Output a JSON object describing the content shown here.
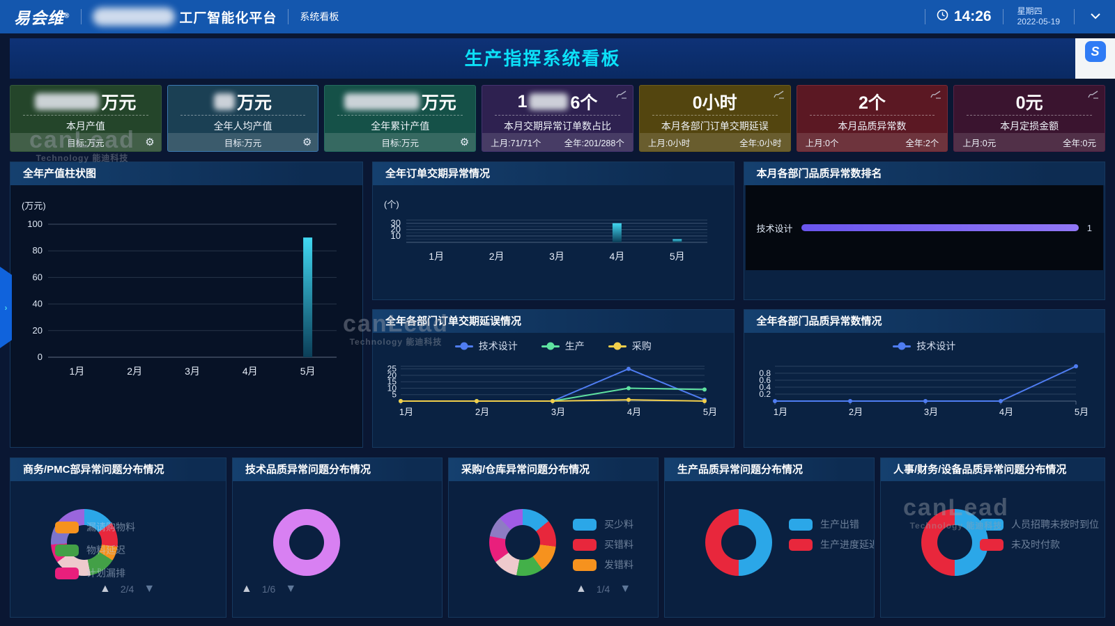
{
  "navbar": {
    "logo_text": "易会维",
    "logo_reg": "®",
    "platform_title": "工厂智能化平台",
    "menu_item": "系统看板",
    "time": "14:26",
    "weekday": "星期四",
    "date": "2022-05-19"
  },
  "title_bar": {
    "title": "生产指挥系统看板",
    "widget_letter": "S"
  },
  "drawer": {
    "chevron": "›"
  },
  "icons": {
    "gear": "⚙",
    "pager_up": "▲",
    "pager_down": "▼"
  },
  "watermark": {
    "line1": "canLead",
    "line2": "Technology 能迪科技"
  },
  "kpi_cards": [
    {
      "name": "monthly-output",
      "prefix": "",
      "blur_width": 92,
      "suffix": "万元",
      "label": "本月产值",
      "footer": [
        "目标:万元"
      ],
      "gear": true,
      "trend_icon": false,
      "bg": "#24452a",
      "border": "#35593a",
      "footer_bg": "rgba(255,255,255,0.14)"
    },
    {
      "name": "annual-per-capita-output",
      "prefix": "",
      "blur_width": 30,
      "suffix": "万元",
      "label": "全年人均产值",
      "footer": [
        "目标:万元"
      ],
      "gear": true,
      "trend_icon": false,
      "bg": "#1b4054",
      "border": "#3c7bb4",
      "footer_bg": "rgba(255,255,255,0.14)"
    },
    {
      "name": "annual-cumulative-output",
      "prefix": "",
      "blur_width": 108,
      "suffix": "万元",
      "label": "全年累计产值",
      "footer": [
        "目标:万元"
      ],
      "gear": true,
      "trend_icon": false,
      "bg": "#155148",
      "border": "#236a5e",
      "footer_bg": "rgba(255,255,255,0.14)"
    },
    {
      "name": "monthly-delivery-abnormal-ratio",
      "prefix": "1",
      "blur_width": 56,
      "suffix": "6个",
      "label": "本月交期异常订单数占比",
      "footer": [
        "上月:71/71个",
        "全年:201/288个"
      ],
      "gear": false,
      "trend_icon": true,
      "bg": "#2e2150",
      "border": "#453370",
      "footer_bg": "rgba(255,255,255,0.12)"
    },
    {
      "name": "monthly-dept-order-delay",
      "prefix": "0小时",
      "blur_width": 0,
      "suffix": "",
      "label": "本月各部门订单交期延误",
      "footer": [
        "上月:0小时",
        "全年:0小时"
      ],
      "gear": false,
      "trend_icon": true,
      "bg": "#53450f",
      "border": "#6d5c1c",
      "footer_bg": "rgba(255,255,255,0.13)"
    },
    {
      "name": "monthly-quality-abnormal-count",
      "prefix": "2个",
      "blur_width": 0,
      "suffix": "",
      "label": "本月品质异常数",
      "footer": [
        "上月:0个",
        "全年:2个"
      ],
      "gear": false,
      "trend_icon": true,
      "bg": "#5b1823",
      "border": "#7a2a36",
      "footer_bg": "rgba(255,255,255,0.12)"
    },
    {
      "name": "monthly-loss-amount",
      "prefix": "0元",
      "blur_width": 0,
      "suffix": "",
      "label": "本月定损金额",
      "footer": [
        "上月:0元",
        "全年:0元"
      ],
      "gear": false,
      "trend_icon": true,
      "bg": "#3a142f",
      "border": "#562345",
      "footer_bg": "rgba(255,255,255,0.12)"
    }
  ],
  "chart_data": [
    {
      "id": "annual-output-bar",
      "type": "bar",
      "title": "全年产值柱状图",
      "unit_label": "(万元)",
      "categories": [
        "1月",
        "2月",
        "3月",
        "4月",
        "5月"
      ],
      "values": [
        0,
        0,
        0,
        0,
        90
      ],
      "ylim": [
        0,
        100
      ],
      "yticks": [
        0,
        20,
        40,
        60,
        80,
        100
      ],
      "bar_color_top": "#41d8f2",
      "bar_color_bottom": "#0b3e58"
    },
    {
      "id": "order-delay-bar",
      "type": "bar",
      "title": "全年订单交期异常情况",
      "unit_label": "(个)",
      "categories": [
        "1月",
        "2月",
        "3月",
        "4月",
        "5月"
      ],
      "values": [
        0,
        0,
        0,
        30,
        5
      ],
      "ylim": [
        0,
        35
      ],
      "yticks": [
        10,
        20,
        30
      ],
      "bar_color_top": "#41d8f2",
      "bar_color_bottom": "#0b3e58"
    },
    {
      "id": "dept-quality-rank",
      "type": "hbar",
      "title": "本月各部门品质异常数排名",
      "categories": [
        "技术设计"
      ],
      "values": [
        1
      ],
      "max": 1,
      "bar_color_start": "#6a55ee",
      "bar_color_end": "#9177f5"
    },
    {
      "id": "dept-order-delay-line",
      "type": "line",
      "title": "全年各部门订单交期延误情况",
      "categories": [
        "1月",
        "2月",
        "3月",
        "4月",
        "5月"
      ],
      "ylim": [
        0,
        27
      ],
      "yticks": [
        5,
        10,
        15,
        20,
        25
      ],
      "series": [
        {
          "name": "技术设计",
          "color": "#4f7df2",
          "values": [
            0,
            0,
            0,
            25,
            1
          ]
        },
        {
          "name": "生产",
          "color": "#5fe3a1",
          "values": [
            0,
            0,
            0,
            10,
            9
          ]
        },
        {
          "name": "采购",
          "color": "#f2cf4b",
          "values": [
            0,
            0,
            0,
            1,
            0
          ]
        }
      ]
    },
    {
      "id": "dept-quality-line",
      "type": "line",
      "title": "全年各部门品质异常数情况",
      "categories": [
        "1月",
        "2月",
        "3月",
        "4月",
        "5月"
      ],
      "ylim": [
        0,
        1
      ],
      "yticks": [
        0.2,
        0.4,
        0.6,
        0.8
      ],
      "series": [
        {
          "name": "技术设计",
          "color": "#4f7df2",
          "values": [
            0,
            0,
            0,
            0,
            1
          ]
        }
      ]
    }
  ],
  "donut_panels": [
    {
      "id": "pmc",
      "title": "商务/PMC部异常问题分布情况",
      "pagination": "2/4",
      "pager_pos": "center",
      "legend_mode": "overlay",
      "slices": [
        {
          "color": "#2ba7e8",
          "value": 15
        },
        {
          "color": "#e8273c",
          "value": 12
        },
        {
          "color": "#f6921e",
          "value": 7
        },
        {
          "color": "#43a047",
          "value": 13
        },
        {
          "color": "#eecacd",
          "value": 18
        },
        {
          "color": "#e91f7c",
          "value": 9
        },
        {
          "color": "#7d74cc",
          "value": 12
        },
        {
          "color": "#9a66dd",
          "value": 14
        }
      ],
      "legend": [
        {
          "color": "#f6921e",
          "label": "漏请购物料"
        },
        {
          "color": "#43a047",
          "label": "物料延迟"
        },
        {
          "color": "#e91f7c",
          "label": "计划漏排"
        }
      ]
    },
    {
      "id": "tech-quality",
      "title": "技术品质异常问题分布情况",
      "pagination": "1/6",
      "pager_pos": "left",
      "legend_mode": "right",
      "slices": [
        {
          "color": "#d880f2",
          "value": 100
        }
      ],
      "legend": []
    },
    {
      "id": "purchase-warehouse",
      "title": "采购/仓库异常问题分布情况",
      "pagination": "1/4",
      "pager_pos": "legend",
      "legend_mode": "right",
      "slices": [
        {
          "color": "#2ba7e8",
          "value": 14
        },
        {
          "color": "#e8273c",
          "value": 13
        },
        {
          "color": "#f6921e",
          "value": 13
        },
        {
          "color": "#43b049",
          "value": 13
        },
        {
          "color": "#eecacd",
          "value": 12
        },
        {
          "color": "#e91f7c",
          "value": 13
        },
        {
          "color": "#8e7cc3",
          "value": 10
        },
        {
          "color": "#a05ce6",
          "value": 12
        }
      ],
      "legend": [
        {
          "color": "#2ba7e8",
          "label": "买少料"
        },
        {
          "color": "#e8273c",
          "label": "买错料"
        },
        {
          "color": "#f6921e",
          "label": "发错料"
        }
      ]
    },
    {
      "id": "production-quality",
      "title": "生产品质异常问题分布情况",
      "pagination": null,
      "pager_pos": null,
      "legend_mode": "right",
      "slices": [
        {
          "color": "#2ba7e8",
          "value": 50
        },
        {
          "color": "#e8273c",
          "value": 50
        }
      ],
      "legend": [
        {
          "color": "#2ba7e8",
          "label": "生产出错"
        },
        {
          "color": "#e8273c",
          "label": "生产进度延迟"
        }
      ]
    },
    {
      "id": "hr-finance-equipment",
      "title": "人事/财务/设备品质异常问题分布情况",
      "pagination": null,
      "pager_pos": null,
      "legend_mode": "right",
      "slices": [
        {
          "color": "#2ba7e8",
          "value": 50
        },
        {
          "color": "#e8273c",
          "value": 50
        }
      ],
      "legend": [
        {
          "color": "#2ba7e8",
          "label": "人员招聘未按时到位"
        },
        {
          "color": "#e8273c",
          "label": "未及时付款"
        }
      ]
    }
  ]
}
